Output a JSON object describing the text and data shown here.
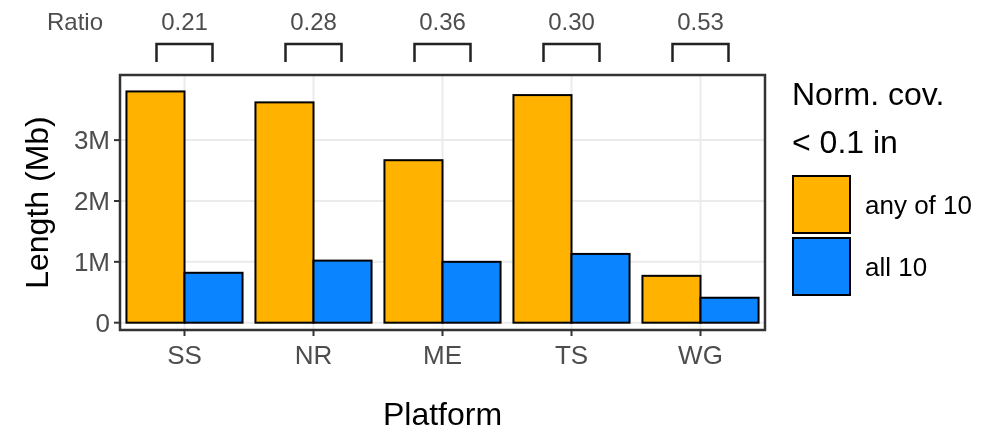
{
  "chart_data": {
    "type": "bar",
    "xlabel": "Platform",
    "ylabel": "Length (Mb)",
    "legend_title": "Norm. cov.\n< 0.1 in",
    "categories": [
      "SS",
      "NR",
      "ME",
      "TS",
      "WG"
    ],
    "series": [
      {
        "name": "any of 10",
        "color": "#ffb300",
        "values": [
          3.8,
          3.62,
          2.67,
          3.74,
          0.77
        ]
      },
      {
        "name": "all 10",
        "color": "#0a84ff",
        "values": [
          0.82,
          1.02,
          1.0,
          1.13,
          0.41
        ]
      }
    ],
    "ylim": [
      -0.12,
      4.07
    ],
    "yticks": [
      {
        "value": 0,
        "label": "0"
      },
      {
        "value": 1,
        "label": "1M"
      },
      {
        "value": 2,
        "label": "2M"
      },
      {
        "value": 3,
        "label": "3M"
      }
    ],
    "grid": true,
    "legend": "right",
    "annotations": [
      "Ratio",
      "0.21",
      "0.28",
      "0.36",
      "0.30",
      "0.53"
    ]
  }
}
